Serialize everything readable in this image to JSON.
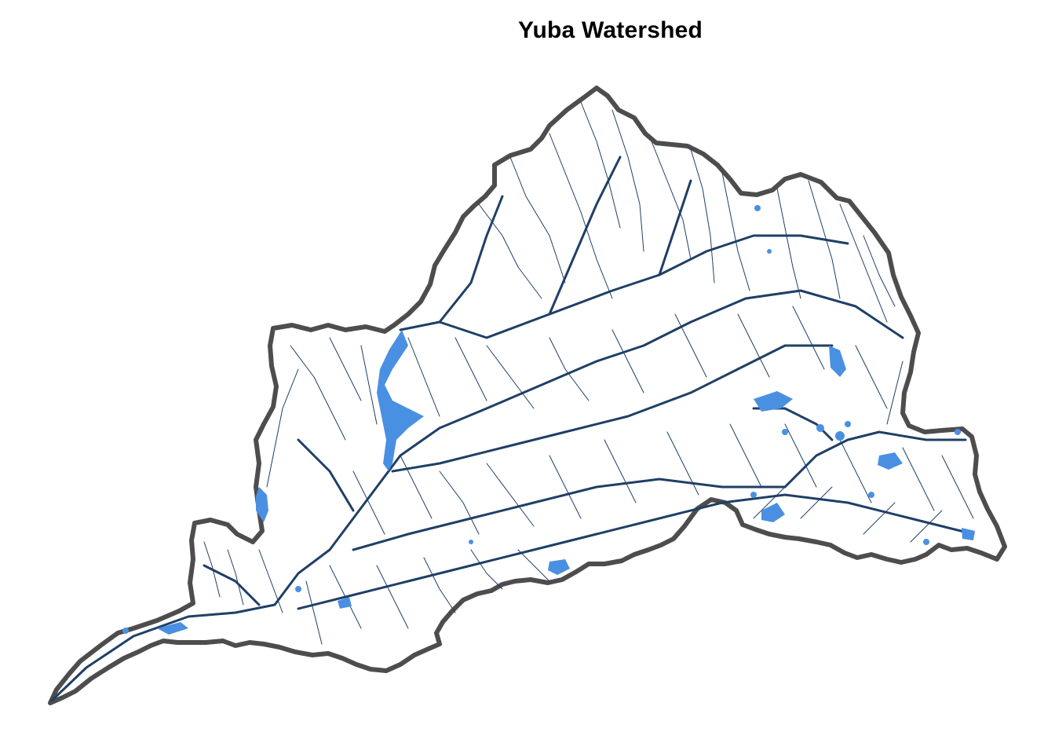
{
  "title": "Yuba Watershed",
  "colors": {
    "boundary": "#4d4d4d",
    "stream": "#1f3f66",
    "waterbody": "#4a90e2",
    "background": "#ffffff"
  }
}
